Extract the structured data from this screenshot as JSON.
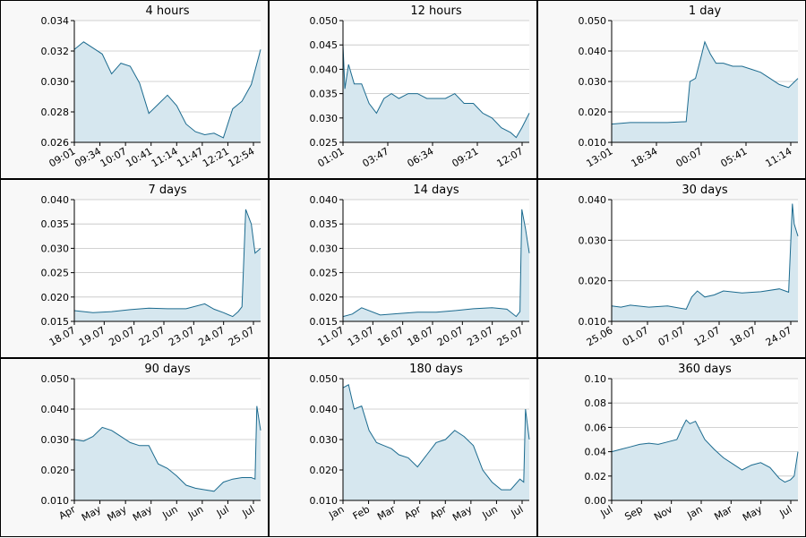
{
  "chart_data": [
    {
      "type": "area",
      "title": "4 hours",
      "ylim": [
        0.026,
        0.034
      ],
      "yticks": [
        "0.026",
        "0.028",
        "0.030",
        "0.032",
        "0.034"
      ],
      "xticks": [
        "09:01",
        "09:34",
        "10:07",
        "10:41",
        "11:14",
        "11:47",
        "12:21",
        "12:54"
      ],
      "x": [
        0,
        0.05,
        0.1,
        0.15,
        0.2,
        0.25,
        0.3,
        0.35,
        0.4,
        0.45,
        0.5,
        0.55,
        0.6,
        0.65,
        0.7,
        0.75,
        0.8,
        0.85,
        0.9,
        0.95,
        1
      ],
      "y": [
        0.0321,
        0.0326,
        0.0322,
        0.0318,
        0.0305,
        0.0312,
        0.031,
        0.0299,
        0.0279,
        0.0285,
        0.0291,
        0.0284,
        0.0272,
        0.0267,
        0.0265,
        0.0266,
        0.0263,
        0.0282,
        0.0287,
        0.0298,
        0.0321
      ],
      "color": "#1c6b8f",
      "fill": "#d6e7ef"
    },
    {
      "type": "area",
      "title": "12 hours",
      "ylim": [
        0.025,
        0.05
      ],
      "yticks": [
        "0.025",
        "0.030",
        "0.035",
        "0.040",
        "0.045",
        "0.050"
      ],
      "xticks": [
        "01:01",
        "03:47",
        "06:34",
        "09:21",
        "12:07"
      ],
      "x": [
        0,
        0.01,
        0.03,
        0.06,
        0.1,
        0.14,
        0.18,
        0.22,
        0.26,
        0.3,
        0.35,
        0.4,
        0.45,
        0.5,
        0.55,
        0.6,
        0.65,
        0.7,
        0.75,
        0.8,
        0.85,
        0.9,
        0.93,
        0.96,
        1
      ],
      "y": [
        0.045,
        0.036,
        0.041,
        0.037,
        0.037,
        0.033,
        0.031,
        0.034,
        0.035,
        0.034,
        0.035,
        0.035,
        0.034,
        0.034,
        0.034,
        0.035,
        0.033,
        0.033,
        0.031,
        0.03,
        0.028,
        0.027,
        0.026,
        0.028,
        0.031
      ],
      "color": "#1c6b8f",
      "fill": "#d6e7ef"
    },
    {
      "type": "area",
      "title": "1 day",
      "ylim": [
        0.01,
        0.05
      ],
      "yticks": [
        "0.010",
        "0.020",
        "0.030",
        "0.040",
        "0.050"
      ],
      "xticks": [
        "13:01",
        "18:34",
        "00:07",
        "05:41",
        "11:14"
      ],
      "x": [
        0,
        0.1,
        0.2,
        0.3,
        0.4,
        0.42,
        0.45,
        0.48,
        0.5,
        0.53,
        0.56,
        0.6,
        0.65,
        0.7,
        0.75,
        0.8,
        0.85,
        0.9,
        0.95,
        1
      ],
      "y": [
        0.016,
        0.0165,
        0.0165,
        0.0165,
        0.0168,
        0.03,
        0.031,
        0.038,
        0.043,
        0.039,
        0.036,
        0.036,
        0.035,
        0.035,
        0.034,
        0.033,
        0.031,
        0.029,
        0.028,
        0.031
      ],
      "color": "#1c6b8f",
      "fill": "#d6e7ef"
    },
    {
      "type": "area",
      "title": "7 days",
      "ylim": [
        0.015,
        0.04
      ],
      "yticks": [
        "0.015",
        "0.020",
        "0.025",
        "0.030",
        "0.035",
        "0.040"
      ],
      "xticks": [
        "18.07",
        "19.07",
        "20.07",
        "22.07",
        "23.07",
        "24.07",
        "25.07"
      ],
      "x": [
        0,
        0.1,
        0.2,
        0.3,
        0.4,
        0.5,
        0.6,
        0.7,
        0.75,
        0.8,
        0.85,
        0.88,
        0.9,
        0.92,
        0.95,
        0.97,
        1
      ],
      "y": [
        0.0172,
        0.0168,
        0.017,
        0.0174,
        0.0177,
        0.0176,
        0.0176,
        0.0186,
        0.0175,
        0.0168,
        0.016,
        0.017,
        0.018,
        0.038,
        0.035,
        0.029,
        0.03
      ],
      "color": "#1c6b8f",
      "fill": "#d6e7ef"
    },
    {
      "type": "area",
      "title": "14 days",
      "ylim": [
        0.015,
        0.04
      ],
      "yticks": [
        "0.015",
        "0.020",
        "0.025",
        "0.030",
        "0.035",
        "0.040"
      ],
      "xticks": [
        "11.07",
        "13.07",
        "16.07",
        "18.07",
        "20.07",
        "23.07",
        "25.07"
      ],
      "x": [
        0,
        0.05,
        0.1,
        0.2,
        0.3,
        0.4,
        0.5,
        0.6,
        0.7,
        0.8,
        0.88,
        0.93,
        0.95,
        0.96,
        0.98,
        1
      ],
      "y": [
        0.016,
        0.0165,
        0.0178,
        0.0163,
        0.0166,
        0.0169,
        0.0169,
        0.0172,
        0.0176,
        0.0178,
        0.0175,
        0.016,
        0.017,
        0.038,
        0.034,
        0.029
      ],
      "color": "#1c6b8f",
      "fill": "#d6e7ef"
    },
    {
      "type": "area",
      "title": "30 days",
      "ylim": [
        0.01,
        0.04
      ],
      "yticks": [
        "0.010",
        "0.020",
        "0.030",
        "0.040"
      ],
      "xticks": [
        "25.06",
        "01.07",
        "07.07",
        "12.07",
        "18.07",
        "24.07"
      ],
      "x": [
        0,
        0.05,
        0.1,
        0.2,
        0.3,
        0.4,
        0.43,
        0.46,
        0.5,
        0.55,
        0.6,
        0.7,
        0.8,
        0.9,
        0.95,
        0.97,
        0.98,
        1
      ],
      "y": [
        0.0138,
        0.0135,
        0.014,
        0.0135,
        0.0138,
        0.013,
        0.016,
        0.0175,
        0.016,
        0.0165,
        0.0175,
        0.017,
        0.0173,
        0.018,
        0.0172,
        0.039,
        0.034,
        0.031
      ],
      "color": "#1c6b8f",
      "fill": "#d6e7ef"
    },
    {
      "type": "area",
      "title": "90 days",
      "ylim": [
        0.01,
        0.05
      ],
      "yticks": [
        "0.010",
        "0.020",
        "0.030",
        "0.040",
        "0.050"
      ],
      "xticks": [
        "Apr",
        "May",
        "May",
        "May",
        "Jun",
        "Jun",
        "Jul",
        "Jul"
      ],
      "x": [
        0,
        0.05,
        0.1,
        0.15,
        0.2,
        0.25,
        0.3,
        0.35,
        0.4,
        0.45,
        0.5,
        0.55,
        0.6,
        0.65,
        0.7,
        0.75,
        0.8,
        0.85,
        0.9,
        0.95,
        0.97,
        0.98,
        1
      ],
      "y": [
        0.03,
        0.0295,
        0.031,
        0.034,
        0.033,
        0.031,
        0.029,
        0.028,
        0.028,
        0.022,
        0.0205,
        0.018,
        0.015,
        0.014,
        0.0135,
        0.013,
        0.016,
        0.017,
        0.0175,
        0.0175,
        0.017,
        0.041,
        0.033
      ],
      "color": "#1c6b8f",
      "fill": "#d6e7ef"
    },
    {
      "type": "area",
      "title": "180 days",
      "ylim": [
        0.01,
        0.05
      ],
      "yticks": [
        "0.010",
        "0.020",
        "0.030",
        "0.040",
        "0.050"
      ],
      "xticks": [
        "Jan",
        "Feb",
        "Mar",
        "Apr",
        "Apr",
        "May",
        "Jun",
        "Jul"
      ],
      "x": [
        0,
        0.03,
        0.06,
        0.1,
        0.14,
        0.18,
        0.22,
        0.26,
        0.3,
        0.35,
        0.4,
        0.45,
        0.5,
        0.55,
        0.6,
        0.65,
        0.7,
        0.75,
        0.8,
        0.85,
        0.9,
        0.95,
        0.97,
        0.98,
        1
      ],
      "y": [
        0.047,
        0.048,
        0.04,
        0.041,
        0.033,
        0.029,
        0.028,
        0.027,
        0.025,
        0.024,
        0.021,
        0.025,
        0.029,
        0.03,
        0.033,
        0.031,
        0.028,
        0.02,
        0.016,
        0.0135,
        0.0135,
        0.017,
        0.016,
        0.04,
        0.03
      ],
      "color": "#1c6b8f",
      "fill": "#d6e7ef"
    },
    {
      "type": "area",
      "title": "360 days",
      "ylim": [
        0,
        0.1
      ],
      "yticks": [
        "0.00",
        "0.02",
        "0.04",
        "0.06",
        "0.08",
        "0.10"
      ],
      "xticks": [
        "Jul",
        "Sep",
        "Nov",
        "Jan",
        "Mar",
        "May",
        "Jul"
      ],
      "x": [
        0,
        0.05,
        0.1,
        0.15,
        0.2,
        0.25,
        0.3,
        0.35,
        0.38,
        0.4,
        0.42,
        0.45,
        0.5,
        0.55,
        0.6,
        0.65,
        0.7,
        0.75,
        0.8,
        0.85,
        0.9,
        0.93,
        0.96,
        0.98,
        1
      ],
      "y": [
        0.04,
        0.042,
        0.044,
        0.046,
        0.047,
        0.046,
        0.048,
        0.05,
        0.06,
        0.066,
        0.063,
        0.065,
        0.05,
        0.042,
        0.035,
        0.03,
        0.025,
        0.029,
        0.031,
        0.027,
        0.018,
        0.015,
        0.017,
        0.02,
        0.04
      ],
      "color": "#1c6b8f",
      "fill": "#d6e7ef"
    }
  ]
}
